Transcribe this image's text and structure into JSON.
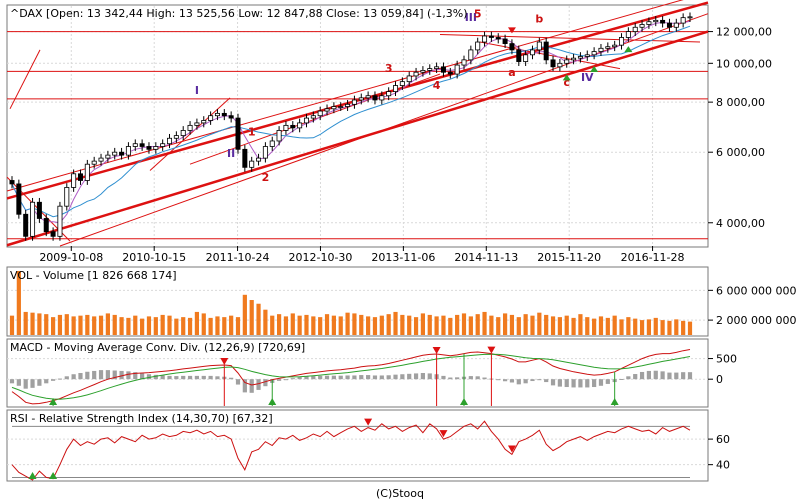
{
  "chart_data": [
    {
      "panel": "price",
      "type": "candlestick",
      "title": "^DAX [Open: 13 342,44  High: 13 525,56  Low: 12 847,88  Close: 13 059,84] (-1,3%)",
      "scale": "log",
      "ylim": [
        3500,
        13900
      ],
      "y_ticks": [
        4000,
        6000,
        8000,
        10000,
        12000
      ],
      "y_tick_labels": [
        "4 000,00",
        "6 000,00",
        "8 000,00",
        "10 000,00",
        "12 000,00"
      ],
      "x_tick_labels": [
        "2009-10-08",
        "2010-10-15",
        "2011-10-24",
        "2012-10-30",
        "2013-11-06",
        "2014-11-13",
        "2015-11-20",
        "2016-11-28"
      ],
      "x_tick_dates": [
        "2009-10-08",
        "2010-10-15",
        "2011-10-24",
        "2012-10-30",
        "2013-11-06",
        "2014-11-13",
        "2015-11-20",
        "2016-11-28"
      ],
      "horizontal_lines": [
        3650,
        8150,
        9550,
        12000
      ],
      "closes": [
        5000,
        4200,
        3700,
        4500,
        4100,
        3800,
        3700,
        4400,
        4900,
        5300,
        5100,
        5600,
        5700,
        5800,
        5900,
        6000,
        5900,
        6200,
        6300,
        6200,
        6100,
        6200,
        6300,
        6500,
        6600,
        6800,
        7000,
        7100,
        7200,
        7400,
        7500,
        7400,
        7300,
        6100,
        5500,
        5700,
        5800,
        6200,
        6400,
        6800,
        7000,
        6900,
        7100,
        7300,
        7400,
        7600,
        7700,
        7800,
        7800,
        7900,
        8100,
        8200,
        8300,
        8100,
        8300,
        8500,
        8800,
        9000,
        9300,
        9500,
        9600,
        9700,
        9800,
        9500,
        9400,
        9900,
        10200,
        10800,
        11300,
        11700,
        11600,
        11500,
        11200,
        10800,
        10100,
        10500,
        10800,
        11300,
        10200,
        9800,
        10000,
        10200,
        10300,
        10400,
        10500,
        10700,
        10900,
        11000,
        11100,
        11600,
        12000,
        12300,
        12500,
        12700,
        12800,
        12600,
        12300,
        12600,
        13000,
        13060
      ],
      "wave_labels": [
        {
          "text": "I",
          "color": "#5a2ca0"
        },
        {
          "text": "II",
          "color": "#5a2ca0"
        },
        {
          "text": "III",
          "color": "#5a2ca0"
        },
        {
          "text": "IV",
          "color": "#5a2ca0"
        },
        {
          "text": "1",
          "color": "#cc1111"
        },
        {
          "text": "2",
          "color": "#cc1111"
        },
        {
          "text": "3",
          "color": "#cc1111"
        },
        {
          "text": "4",
          "color": "#cc1111"
        },
        {
          "text": "5",
          "color": "#cc1111"
        },
        {
          "text": "a",
          "color": "#cc1111"
        },
        {
          "text": "b",
          "color": "#cc1111"
        },
        {
          "text": "c",
          "color": "#cc1111"
        }
      ]
    },
    {
      "panel": "volume",
      "type": "bar",
      "title": "VOL - Volume [1 826 668 174]",
      "ylim": [
        0,
        9000000000
      ],
      "y_ticks": [
        2000000000,
        6000000000
      ],
      "y_tick_labels": [
        "2 000 000 000",
        "6 000 000 000"
      ],
      "values_billions": [
        2.6,
        8.6,
        3.1,
        3.0,
        2.9,
        2.8,
        2.4,
        2.7,
        2.8,
        2.5,
        2.6,
        2.7,
        2.5,
        2.6,
        2.9,
        2.7,
        2.4,
        2.3,
        2.6,
        2.2,
        2.5,
        2.4,
        2.7,
        2.6,
        2.2,
        2.4,
        2.3,
        3.1,
        2.9,
        2.3,
        2.5,
        2.4,
        2.6,
        2.4,
        5.4,
        4.7,
        4.2,
        3.4,
        2.6,
        2.8,
        2.5,
        2.9,
        2.6,
        2.7,
        2.5,
        2.4,
        2.8,
        2.6,
        2.5,
        3.0,
        2.9,
        2.7,
        2.5,
        2.4,
        2.6,
        2.8,
        3.1,
        2.7,
        2.6,
        2.4,
        2.9,
        2.7,
        2.5,
        2.6,
        2.3,
        2.7,
        2.9,
        2.5,
        2.8,
        3.1,
        2.6,
        2.4,
        2.9,
        2.7,
        2.4,
        2.8,
        2.6,
        3.0,
        2.7,
        2.5,
        2.4,
        2.6,
        2.3,
        2.8,
        2.4,
        2.2,
        2.5,
        2.3,
        2.6,
        2.1,
        2.4,
        2.2,
        2.0,
        2.1,
        2.3,
        2.0,
        1.9,
        2.1,
        1.9,
        1.8
      ],
      "bar_color": "#f07a1e"
    },
    {
      "panel": "macd",
      "type": "line",
      "title": "MACD - Moving Average Conv. Div. (12,26,9) [720,69]",
      "ylim": [
        -650,
        950
      ],
      "y_ticks": [
        0,
        500
      ],
      "y_tick_labels": [
        "0",
        "500"
      ],
      "series": [
        {
          "role": "macd",
          "color": "#cc1111",
          "values": [
            -300,
            -420,
            -560,
            -600,
            -590,
            -560,
            -520,
            -470,
            -400,
            -330,
            -270,
            -200,
            -130,
            -60,
            0,
            40,
            80,
            120,
            140,
            150,
            160,
            175,
            190,
            205,
            225,
            250,
            270,
            290,
            310,
            330,
            340,
            345,
            330,
            150,
            -80,
            -140,
            -110,
            -60,
            -10,
            20,
            50,
            80,
            110,
            140,
            160,
            180,
            200,
            215,
            230,
            250,
            270,
            300,
            320,
            330,
            350,
            380,
            420,
            460,
            500,
            540,
            580,
            600,
            610,
            590,
            570,
            590,
            620,
            650,
            660,
            640,
            620,
            580,
            540,
            490,
            420,
            420,
            460,
            500,
            420,
            320,
            260,
            220,
            180,
            150,
            120,
            100,
            110,
            140,
            180,
            260,
            340,
            420,
            500,
            560,
            600,
            620,
            620,
            650,
            690,
            720
          ]
        },
        {
          "role": "signal",
          "color": "#2ca02c",
          "values": [
            -200,
            -260,
            -330,
            -390,
            -430,
            -460,
            -480,
            -485,
            -470,
            -450,
            -420,
            -380,
            -330,
            -280,
            -220,
            -170,
            -120,
            -70,
            -30,
            10,
            40,
            70,
            100,
            125,
            150,
            170,
            190,
            210,
            230,
            250,
            270,
            285,
            295,
            280,
            240,
            190,
            150,
            110,
            80,
            60,
            55,
            55,
            60,
            70,
            85,
            100,
            115,
            130,
            145,
            160,
            180,
            200,
            220,
            240,
            260,
            285,
            310,
            340,
            370,
            400,
            430,
            460,
            490,
            510,
            530,
            545,
            560,
            575,
            590,
            600,
            605,
            600,
            590,
            570,
            545,
            520,
            505,
            500,
            490,
            470,
            440,
            410,
            380,
            350,
            320,
            290,
            270,
            255,
            250,
            255,
            270,
            295,
            325,
            360,
            395,
            430,
            460,
            490,
            520,
            550
          ]
        }
      ],
      "hist_color": "#a0a0a0",
      "markers": [
        {
          "kind": "sell",
          "index": 31,
          "color": "#dd1111"
        },
        {
          "kind": "sell",
          "index": 62,
          "color": "#dd1111"
        },
        {
          "kind": "sell",
          "index": 70,
          "color": "#dd1111"
        },
        {
          "kind": "buy",
          "index": 6,
          "color": "#2ca02c"
        },
        {
          "kind": "buy",
          "index": 38,
          "color": "#2ca02c"
        },
        {
          "kind": "buy",
          "index": 66,
          "color": "#2ca02c"
        },
        {
          "kind": "buy",
          "index": 88,
          "color": "#2ca02c"
        }
      ]
    },
    {
      "panel": "rsi",
      "type": "line",
      "title": "RSI - Relative Strength Index (14,30,70) [67,32]",
      "ylim": [
        28,
        82
      ],
      "y_ticks": [
        40,
        60
      ],
      "y_tick_labels": [
        "40",
        "60"
      ],
      "levels": [
        30,
        70
      ],
      "series": [
        {
          "role": "rsi",
          "color": "#cc1111",
          "values": [
            40,
            34,
            31,
            28,
            35,
            30,
            29,
            40,
            52,
            60,
            55,
            58,
            56,
            60,
            61,
            57,
            62,
            60,
            58,
            63,
            60,
            61,
            64,
            62,
            63,
            66,
            65,
            67,
            64,
            66,
            62,
            63,
            60,
            45,
            36,
            50,
            52,
            58,
            55,
            61,
            60,
            63,
            59,
            61,
            64,
            62,
            66,
            62,
            65,
            68,
            70,
            66,
            69,
            67,
            72,
            68,
            70,
            66,
            69,
            71,
            65,
            72,
            68,
            60,
            62,
            66,
            70,
            72,
            68,
            74,
            66,
            60,
            52,
            48,
            58,
            60,
            63,
            67,
            56,
            51,
            54,
            58,
            60,
            62,
            59,
            62,
            64,
            66,
            65,
            68,
            70,
            68,
            66,
            67,
            64,
            69,
            66,
            68,
            70,
            67
          ]
        }
      ],
      "markers": [
        {
          "kind": "sell",
          "index": 52,
          "color": "#dd1111"
        },
        {
          "kind": "sell",
          "index": 63,
          "color": "#dd1111"
        },
        {
          "kind": "sell",
          "index": 73,
          "color": "#dd1111"
        },
        {
          "kind": "buy",
          "index": 3,
          "color": "#2ca02c"
        },
        {
          "kind": "buy",
          "index": 6,
          "color": "#2ca02c"
        }
      ]
    }
  ],
  "footer": "(C)Stooq"
}
